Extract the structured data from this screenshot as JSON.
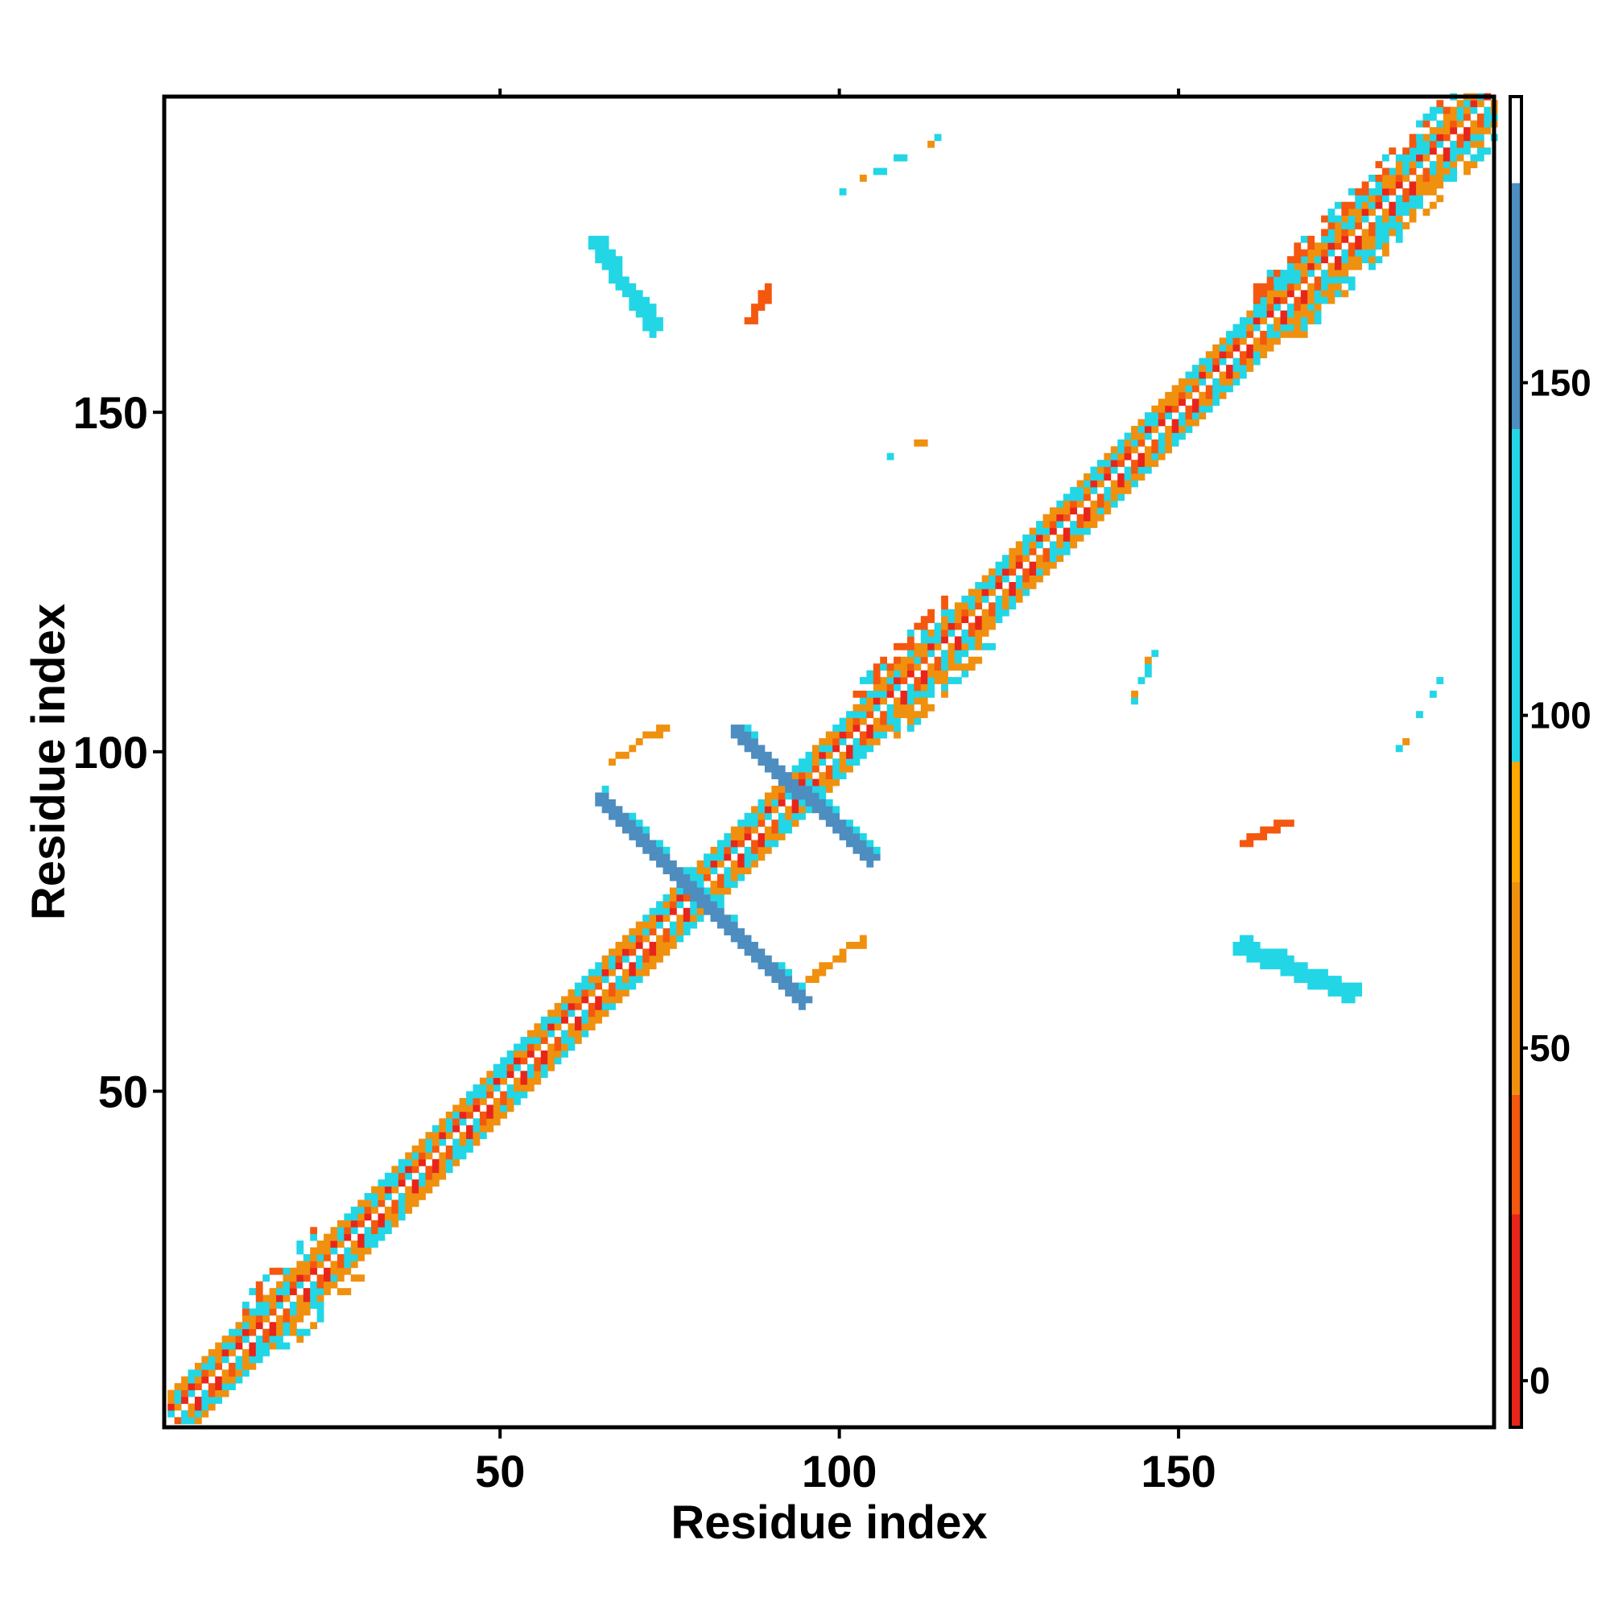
{
  "chart_data": {
    "type": "heatmap",
    "title": "",
    "xlabel": "Residue index",
    "ylabel": "Residue index",
    "xlim": [
      1,
      196
    ],
    "ylim": [
      1,
      196
    ],
    "x_ticks": [
      50,
      100,
      150
    ],
    "y_ticks": [
      50,
      100,
      150
    ],
    "colorbar": {
      "ticks": [
        0,
        50,
        100,
        150
      ],
      "range": [
        -7,
        193
      ],
      "bands": [
        {
          "from": -7,
          "to": 25,
          "color": "#e8251b"
        },
        {
          "from": 25,
          "to": 43,
          "color": "#f4580f"
        },
        {
          "from": 43,
          "to": 75,
          "color": "#f0900f"
        },
        {
          "from": 75,
          "to": 93,
          "color": "#ffa800"
        },
        {
          "from": 93,
          "to": 143,
          "color": "#22d6e6"
        },
        {
          "from": 143,
          "to": 180,
          "color": "#4d8dc0"
        },
        {
          "from": 180,
          "to": 193,
          "color": "#ffffff"
        }
      ]
    },
    "features": [
      {
        "kind": "diagonal-band",
        "from": 1,
        "to": 196,
        "note": "local contacts along the main diagonal, colors alternate red/orange/cyan"
      },
      {
        "kind": "antiparallel-strip",
        "x": [
          64,
          94
        ],
        "y": [
          93,
          63
        ],
        "value": 165
      },
      {
        "kind": "antiparallel-strip",
        "x": [
          84,
          104
        ],
        "y": [
          103,
          84
        ],
        "value": 165
      },
      {
        "kind": "antiparallel-strip",
        "x": [
          63,
          72
        ],
        "y": [
          175,
          162
        ],
        "value": 110
      },
      {
        "kind": "antiparallel-strip",
        "x": [
          158,
          175
        ],
        "y": [
          71,
          64
        ],
        "value": 110
      },
      {
        "kind": "short-segment",
        "x": [
          66,
          73
        ],
        "y": [
          98,
          103
        ],
        "value": 60
      },
      {
        "kind": "short-segment",
        "x": [
          95,
          103
        ],
        "y": [
          66,
          72
        ],
        "value": 60
      },
      {
        "kind": "short-segment",
        "x": [
          86,
          89
        ],
        "y": [
          163,
          168
        ],
        "value": 30
      },
      {
        "kind": "short-segment",
        "x": [
          159,
          165
        ],
        "y": [
          86,
          89
        ],
        "value": 30
      },
      {
        "kind": "scattered",
        "x": [
          100,
          114
        ],
        "y": [
          182,
          190
        ],
        "value": 100
      },
      {
        "kind": "scattered",
        "x": [
          182,
          190
        ],
        "y": [
          100,
          114
        ],
        "value": 100
      },
      {
        "kind": "scattered",
        "x": [
          107,
          115
        ],
        "y": [
          143,
          146
        ],
        "value": 115
      },
      {
        "kind": "scattered",
        "x": [
          143,
          146
        ],
        "y": [
          107,
          115
        ],
        "value": 115
      }
    ]
  }
}
